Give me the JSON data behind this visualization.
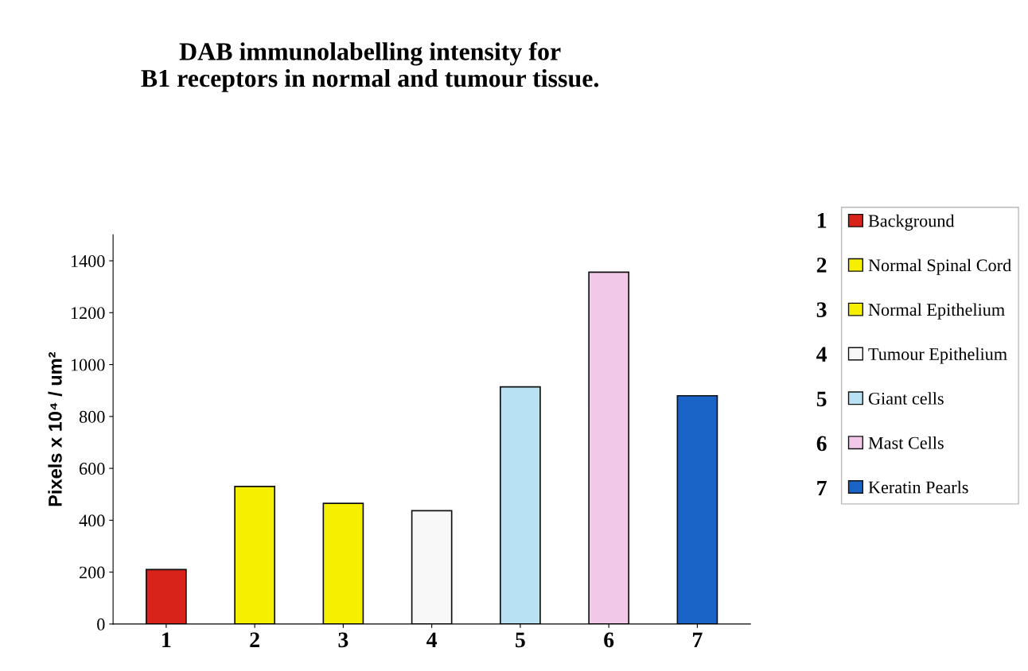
{
  "chart_data": {
    "type": "bar",
    "title": "DAB immunolabelling intensity for\nB1 receptors in normal and tumour tissue.",
    "ylabel": "Pixels x 10⁴ / um²",
    "categories": [
      "1",
      "2",
      "3",
      "4",
      "5",
      "6",
      "7"
    ],
    "series": [
      {
        "name": "Background",
        "color": "#d8231a",
        "values": [
          210,
          null,
          null,
          null,
          null,
          null,
          null
        ]
      },
      {
        "name": "Normal Spinal Cord",
        "color": "#f7ef00",
        "values": [
          null,
          530,
          null,
          null,
          null,
          null,
          null
        ]
      },
      {
        "name": "Normal Epithelium",
        "color": "#f7ef00",
        "values": [
          null,
          null,
          465,
          null,
          null,
          null,
          null
        ]
      },
      {
        "name": "Tumour Epithelium",
        "color": "#f8f8f8",
        "values": [
          null,
          null,
          null,
          437,
          null,
          null,
          null
        ]
      },
      {
        "name": "Giant cells",
        "color": "#b8e2f4",
        "values": [
          null,
          null,
          null,
          null,
          914,
          null,
          null
        ]
      },
      {
        "name": "Mast Cells",
        "color": "#f2c8e8",
        "values": [
          null,
          null,
          null,
          null,
          null,
          1356,
          null
        ]
      },
      {
        "name": "Keratin Pearls",
        "color": "#1a64c8",
        "values": [
          null,
          null,
          null,
          null,
          null,
          null,
          880
        ]
      }
    ],
    "ylim": [
      0,
      1500
    ],
    "yticks": [
      0,
      200,
      400,
      600,
      800,
      1000,
      1200,
      1400
    ],
    "grid": false,
    "legend": "right",
    "annotations": [
      "1",
      "2",
      "3",
      "4",
      "5",
      "6",
      "7"
    ]
  }
}
